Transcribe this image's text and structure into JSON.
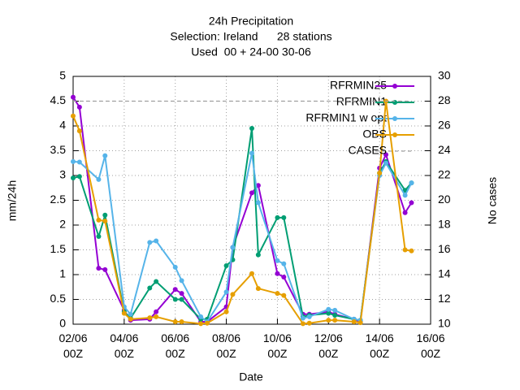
{
  "chart_data": {
    "type": "line",
    "title": "24h Precipitation",
    "subtitle": [
      "Selection: Ireland      28 stations",
      "Used  00 + 24-00 30-06"
    ],
    "xlabel": "Date",
    "ylabel": "mm/24h",
    "y2label": "No cases",
    "x": [
      0,
      0.25,
      1,
      1.25,
      2,
      2.25,
      3,
      3.25,
      4,
      4.25,
      5,
      5.25,
      6,
      6.25,
      7,
      7.25,
      8,
      8.25,
      9,
      9.25,
      10,
      10.25,
      11,
      11.25,
      12,
      12.25,
      13,
      13.25
    ],
    "xlim": [
      0,
      14
    ],
    "xticks": [
      {
        "value": 0,
        "label": "02/06\n00Z"
      },
      {
        "value": 2,
        "label": "04/06\n00Z"
      },
      {
        "value": 4,
        "label": "06/06\n00Z"
      },
      {
        "value": 6,
        "label": "08/06\n00Z"
      },
      {
        "value": 8,
        "label": "10/06\n00Z"
      },
      {
        "value": 10,
        "label": "12/06\n00Z"
      },
      {
        "value": 12,
        "label": "14/06\n00Z"
      },
      {
        "value": 14,
        "label": "16/06\n00Z"
      }
    ],
    "ylim": [
      0,
      5
    ],
    "yticks": [
      0,
      0.5,
      1,
      1.5,
      2,
      2.5,
      3,
      3.5,
      4,
      4.5,
      5
    ],
    "y2lim": [
      10,
      30
    ],
    "y2ticks": [
      10,
      12,
      14,
      16,
      18,
      20,
      22,
      24,
      26,
      28,
      30
    ],
    "grid": true,
    "legend": "top-right",
    "series": [
      {
        "name": "RFRMIN25",
        "color": "#9400d3",
        "values": [
          4.58,
          4.38,
          1.13,
          1.1,
          0.28,
          0.08,
          0.1,
          0.25,
          0.7,
          0.62,
          0.05,
          0.05,
          0.35,
          1.55,
          2.65,
          2.8,
          1.02,
          0.95,
          0.2,
          0.2,
          0.25,
          0.2,
          0.1,
          0.05,
          3.15,
          3.42,
          2.25,
          2.45
        ]
      },
      {
        "name": "RFRMIN1",
        "color": "#009e73",
        "values": [
          2.95,
          2.98,
          1.77,
          2.2,
          0.25,
          0.12,
          0.73,
          0.86,
          0.5,
          0.5,
          0.1,
          0.1,
          1.18,
          1.3,
          3.95,
          1.4,
          2.15,
          2.15,
          0.15,
          0.18,
          0.22,
          0.18,
          0.1,
          0.08,
          3.05,
          3.28,
          2.7,
          2.85
        ]
      },
      {
        "name": "RFRMIN1 w opt",
        "color": "#56b4e9",
        "values": [
          3.28,
          3.27,
          2.92,
          3.4,
          0.35,
          0.2,
          1.65,
          1.68,
          1.15,
          0.88,
          0.15,
          0.05,
          0.65,
          1.55,
          3.45,
          2.45,
          1.28,
          1.22,
          0.12,
          0.15,
          0.3,
          0.28,
          0.1,
          0.08,
          3.0,
          3.25,
          2.6,
          2.85
        ]
      },
      {
        "name": "OBS",
        "color": "#e69f00",
        "values": [
          4.2,
          3.9,
          2.1,
          2.08,
          0.22,
          0.1,
          0.13,
          0.15,
          0.05,
          0.05,
          0.01,
          0.02,
          0.25,
          0.6,
          1.02,
          0.72,
          0.62,
          0.58,
          0.01,
          0.02,
          0.08,
          0.08,
          0.05,
          0.03,
          3.05,
          4.5,
          1.5,
          1.48
        ]
      },
      {
        "name": "CASES",
        "color": "#a0a0a0",
        "axis": "y2",
        "dashed": true,
        "markers": false,
        "values": [
          28,
          28,
          28,
          28,
          28,
          28,
          28,
          28,
          28,
          28,
          28,
          28,
          28,
          28,
          28,
          28,
          28,
          28,
          28,
          28,
          28,
          28,
          28,
          28,
          28,
          28,
          28,
          28
        ]
      }
    ]
  }
}
